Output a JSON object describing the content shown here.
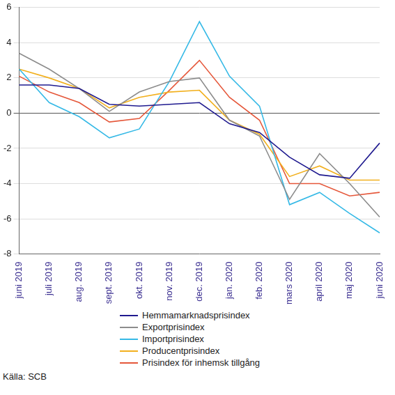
{
  "chart_data": {
    "type": "line",
    "categories": [
      "juni 2019",
      "juli 2019",
      "aug. 2019",
      "sept. 2019",
      "okt. 2019",
      "nov. 2019",
      "dec. 2019",
      "jan. 2020",
      "feb. 2020",
      "mars 2020",
      "april 2020",
      "maj 2020",
      "juni 2020"
    ],
    "series": [
      {
        "name": "Hemmamarknadsprisindex",
        "color": "#1f1a8f",
        "values": [
          1.6,
          1.6,
          1.4,
          0.5,
          0.4,
          0.5,
          0.6,
          -0.6,
          -1.1,
          -2.5,
          -3.5,
          -3.7,
          -1.7
        ]
      },
      {
        "name": "Exportprisindex",
        "color": "#8c8c8c",
        "values": [
          3.4,
          2.5,
          1.4,
          0.1,
          1.2,
          1.8,
          2.0,
          -0.4,
          -1.3,
          -4.9,
          -2.3,
          -4.0,
          -5.9
        ]
      },
      {
        "name": "Importprisindex",
        "color": "#35b9e6",
        "values": [
          2.5,
          0.6,
          -0.2,
          -1.4,
          -0.9,
          1.8,
          5.2,
          2.1,
          0.4,
          -5.2,
          -4.5,
          -5.7,
          -6.8
        ]
      },
      {
        "name": "Producentprisindex",
        "color": "#f2b01e",
        "values": [
          2.5,
          2.0,
          1.4,
          0.3,
          0.9,
          1.2,
          1.3,
          -0.4,
          -1.2,
          -3.6,
          -3.0,
          -3.8,
          -3.8
        ]
      },
      {
        "name": "Prisindex för inhemsk tillgång",
        "color": "#e5573a",
        "values": [
          2.1,
          1.2,
          0.6,
          -0.5,
          -0.3,
          1.3,
          3.0,
          0.9,
          -0.4,
          -4.0,
          -4.0,
          -4.7,
          -4.5
        ]
      }
    ],
    "ylim": [
      -8,
      6
    ],
    "yticks": [
      -8,
      -6,
      -4,
      -2,
      0,
      2,
      4,
      6
    ],
    "grid": true,
    "legend": "bottom",
    "source": "Källa: SCB"
  }
}
